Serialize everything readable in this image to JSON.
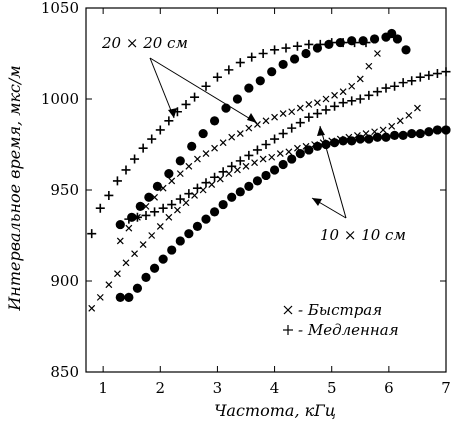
{
  "chart_data": {
    "type": "scatter",
    "xlabel": "Частота, кГц",
    "ylabel": "Интервальное время, мкс/м",
    "xlim": [
      0.7,
      7
    ],
    "ylim": [
      850,
      1050
    ],
    "xticks": [
      1,
      2,
      3,
      4,
      5,
      6,
      7
    ],
    "yticks": [
      850,
      900,
      950,
      1000,
      1050
    ],
    "grid": false,
    "legend_position": "bottom-right",
    "legend": [
      {
        "marker": "x",
        "label": "- Быстрая"
      },
      {
        "marker": "+",
        "label": "- Медленная"
      }
    ],
    "annotations": [
      {
        "text": "20 × 20 см",
        "points_to": [
          "upper plus series",
          "upper cross series"
        ]
      },
      {
        "text": "10 × 10 см",
        "points_to": [
          "lower cross series",
          "lower plus series"
        ]
      }
    ],
    "series": [
      {
        "marker": "+",
        "group": "20 × 20 см",
        "x": [
          0.8,
          0.95,
          1.1,
          1.25,
          1.4,
          1.55,
          1.7,
          1.85,
          2.0,
          2.15,
          2.3,
          2.45,
          2.6,
          2.8,
          3.0,
          3.2,
          3.4,
          3.6,
          3.8,
          4.0,
          4.2,
          4.4,
          4.6,
          4.8,
          5.0,
          5.2,
          5.4,
          5.6
        ],
        "y": [
          926,
          940,
          947,
          955,
          961,
          967,
          973,
          978,
          983,
          988,
          993,
          997,
          1001,
          1007,
          1012,
          1016,
          1020,
          1023,
          1025,
          1027,
          1028,
          1029,
          1030,
          1030,
          1031,
          1031,
          1031,
          1031
        ]
      },
      {
        "marker": "dot",
        "group": "20 × 20 см",
        "x": [
          1.3,
          1.5,
          1.65,
          1.8,
          1.95,
          2.15,
          2.35,
          2.55,
          2.75,
          2.95,
          3.15,
          3.35,
          3.55,
          3.75,
          3.95,
          4.15,
          4.35,
          4.55,
          4.75,
          4.95,
          5.15,
          5.35,
          5.55,
          5.75,
          5.95,
          6.05,
          6.15,
          6.3
        ],
        "y": [
          931,
          935,
          941,
          946,
          952,
          959,
          966,
          974,
          981,
          988,
          995,
          1000,
          1006,
          1010,
          1015,
          1019,
          1022,
          1025,
          1028,
          1030,
          1031,
          1032,
          1032,
          1033,
          1034,
          1036,
          1033,
          1027
        ]
      },
      {
        "marker": "x",
        "group": "20 × 20 см",
        "x": [
          1.3,
          1.45,
          1.6,
          1.75,
          1.9,
          2.05,
          2.2,
          2.35,
          2.5,
          2.65,
          2.8,
          2.95,
          3.1,
          3.25,
          3.4,
          3.55,
          3.7,
          3.85,
          4.0,
          4.15,
          4.3,
          4.45,
          4.6,
          4.75,
          4.9,
          5.05,
          5.2,
          5.35,
          5.5,
          5.65,
          5.8
        ],
        "y": [
          922,
          929,
          935,
          941,
          946,
          951,
          955,
          959,
          963,
          967,
          970,
          973,
          976,
          979,
          981,
          984,
          986,
          988,
          990,
          992,
          993,
          995,
          997,
          998,
          1000,
          1002,
          1004,
          1007,
          1011,
          1018,
          1025
        ]
      },
      {
        "marker": "x",
        "group": "10 × 10 см",
        "x": [
          0.8,
          0.95,
          1.1,
          1.25,
          1.4,
          1.55,
          1.7,
          1.85,
          2.0,
          2.15,
          2.3,
          2.45,
          2.6,
          2.75,
          2.9,
          3.05,
          3.2,
          3.35,
          3.5,
          3.65,
          3.8,
          3.95,
          4.1,
          4.25,
          4.4,
          4.55,
          4.7,
          4.85,
          5.0,
          5.15,
          5.3,
          5.45,
          5.6,
          5.75,
          5.9,
          6.05,
          6.2,
          6.35,
          6.5
        ],
        "y": [
          885,
          891,
          898,
          904,
          910,
          915,
          920,
          925,
          930,
          935,
          939,
          943,
          947,
          950,
          953,
          956,
          959,
          961,
          963,
          965,
          967,
          968,
          970,
          971,
          973,
          974,
          975,
          976,
          977,
          978,
          979,
          980,
          981,
          982,
          983,
          985,
          988,
          991,
          995
        ]
      },
      {
        "marker": "dot",
        "group": "10 × 10 см",
        "x": [
          1.3,
          1.45,
          1.6,
          1.75,
          1.9,
          2.05,
          2.2,
          2.35,
          2.5,
          2.65,
          2.8,
          2.95,
          3.1,
          3.25,
          3.4,
          3.55,
          3.7,
          3.85,
          4.0,
          4.15,
          4.3,
          4.45,
          4.6,
          4.75,
          4.9,
          5.05,
          5.2,
          5.35,
          5.5,
          5.65,
          5.8,
          5.95,
          6.1,
          6.25,
          6.4,
          6.55,
          6.7,
          6.85,
          7.0
        ],
        "y": [
          891,
          891,
          896,
          902,
          907,
          912,
          917,
          922,
          926,
          930,
          934,
          938,
          942,
          946,
          949,
          952,
          955,
          958,
          961,
          964,
          967,
          970,
          972,
          974,
          975,
          976,
          977,
          977,
          978,
          978,
          979,
          979,
          980,
          980,
          981,
          981,
          982,
          983,
          983
        ]
      },
      {
        "marker": "+",
        "group": "10 × 10 см",
        "x": [
          1.45,
          1.6,
          1.75,
          1.9,
          2.05,
          2.2,
          2.35,
          2.5,
          2.65,
          2.8,
          2.95,
          3.1,
          3.25,
          3.4,
          3.55,
          3.7,
          3.85,
          4.0,
          4.15,
          4.3,
          4.45,
          4.6,
          4.75,
          4.9,
          5.05,
          5.2,
          5.35,
          5.5,
          5.65,
          5.8,
          5.95,
          6.1,
          6.25,
          6.4,
          6.55,
          6.7,
          6.85,
          7.0
        ],
        "y": [
          934,
          935,
          936,
          938,
          940,
          942,
          945,
          948,
          951,
          954,
          957,
          960,
          963,
          966,
          969,
          972,
          975,
          978,
          981,
          984,
          987,
          990,
          992,
          994,
          996,
          998,
          999,
          1000,
          1002,
          1004,
          1006,
          1007,
          1009,
          1010,
          1012,
          1013,
          1014,
          1015
        ]
      }
    ]
  }
}
